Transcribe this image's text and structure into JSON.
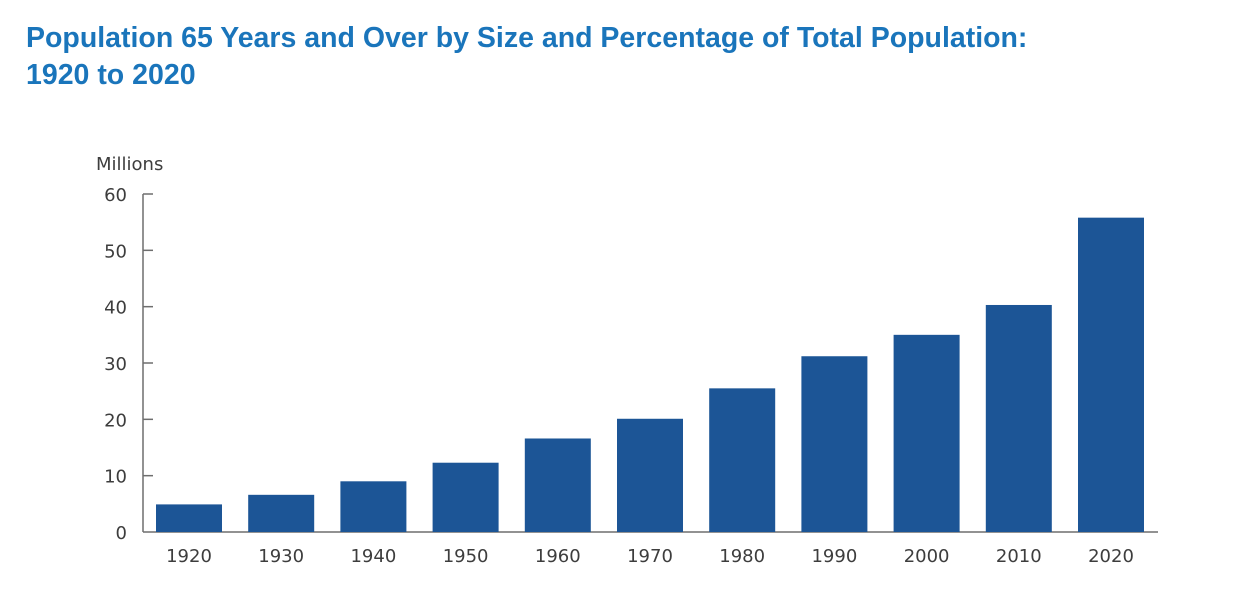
{
  "title_line1": "Population 65 Years and Over by Size and Percentage of Total Population:",
  "title_line2": "1920 to 2020",
  "colors": {
    "bar": "#1c5596",
    "title": "#1a75bb",
    "axis": "#6e6e6e",
    "text": "#3d3d3d"
  },
  "chart_data": {
    "type": "bar",
    "title": "Population 65 Years and Over by Size and Percentage of Total Population: 1920 to 2020",
    "ylabel": "Millions",
    "xlabel": "",
    "categories": [
      "1920",
      "1930",
      "1940",
      "1950",
      "1960",
      "1970",
      "1980",
      "1990",
      "2000",
      "2010",
      "2020"
    ],
    "values": [
      4.9,
      6.6,
      9.0,
      12.3,
      16.6,
      20.1,
      25.5,
      31.2,
      35.0,
      40.3,
      55.8
    ],
    "ylim": [
      0,
      60
    ],
    "yticks": [
      0,
      10,
      20,
      30,
      40,
      50,
      60
    ],
    "grid": false,
    "legend": "none"
  }
}
